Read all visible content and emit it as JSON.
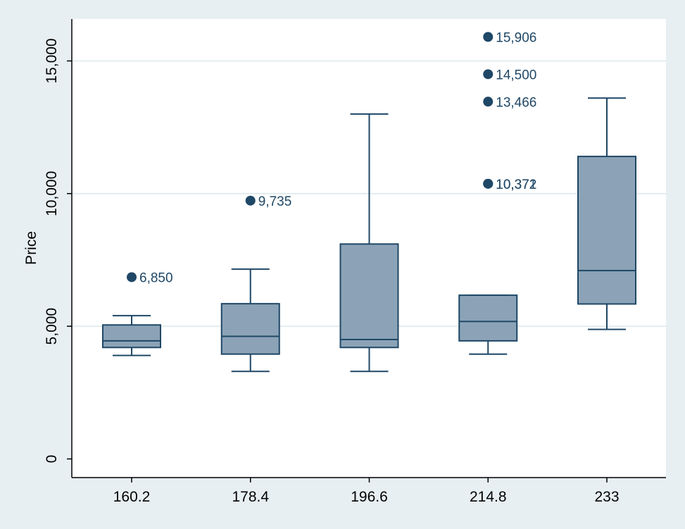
{
  "colors": {
    "page_background": "#e8eff2",
    "plot_background": "#ffffff",
    "gridline": "#e3ecef",
    "box_fill": "#8ca3b7",
    "stroke": "#1f4766",
    "marker": "#1f4766",
    "label_text": "#1f4766",
    "axis_text": "#000000"
  },
  "chart_data": {
    "type": "box",
    "title": "",
    "xlabel": "",
    "ylabel": "Price",
    "ylim": [
      -700,
      16700
    ],
    "yticks": [
      0,
      5000,
      10000,
      15000
    ],
    "ytick_labels": [
      "0",
      "5,000",
      "10,000",
      "15,000"
    ],
    "grid": true,
    "categories": [
      "160.2",
      "178.4",
      "196.6",
      "214.8",
      "233"
    ],
    "boxes": [
      {
        "category": "160.2",
        "whisker_low": 3900,
        "q1": 4200,
        "median": 4450,
        "q3": 5050,
        "whisker_high": 5400,
        "outliers": [
          {
            "value": 6850,
            "label": "6,850"
          }
        ]
      },
      {
        "category": "178.4",
        "whisker_low": 3300,
        "q1": 3950,
        "median": 4620,
        "q3": 5850,
        "whisker_high": 7150,
        "outliers": [
          {
            "value": 9735,
            "label": "9,735"
          }
        ]
      },
      {
        "category": "196.6",
        "whisker_low": 3300,
        "q1": 4200,
        "median": 4500,
        "q3": 8100,
        "whisker_high": 13000,
        "outliers": []
      },
      {
        "category": "214.8",
        "whisker_low": 3950,
        "q1": 4450,
        "median": 5180,
        "q3": 6170,
        "whisker_high": 6170,
        "outliers": [
          {
            "value": 15906,
            "label": "15,906"
          },
          {
            "value": 14500,
            "label": "14,500"
          },
          {
            "value": 13466,
            "label": "13,466"
          },
          {
            "value": 10372,
            "label": "10,372"
          },
          {
            "value": 10371,
            "label": "10,371"
          }
        ]
      },
      {
        "category": "233",
        "whisker_low": 4880,
        "q1": 5840,
        "median": 7100,
        "q3": 11400,
        "whisker_high": 13600,
        "outliers": []
      }
    ]
  }
}
